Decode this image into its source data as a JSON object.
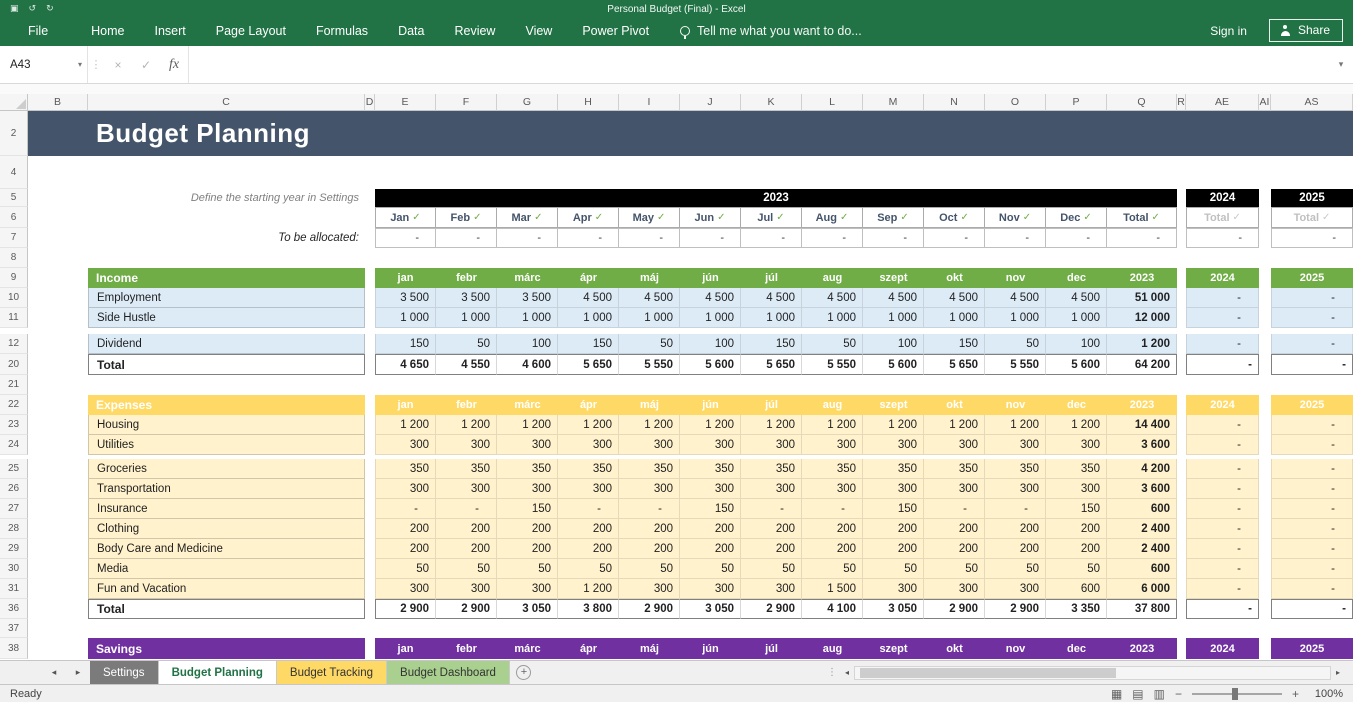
{
  "window": {
    "title": "Personal Budget (Final) - Excel"
  },
  "ribbon": {
    "tabs": [
      {
        "label": "File"
      },
      {
        "label": "Home"
      },
      {
        "label": "Insert"
      },
      {
        "label": "Page Layout"
      },
      {
        "label": "Formulas"
      },
      {
        "label": "Data"
      },
      {
        "label": "Review"
      },
      {
        "label": "View"
      },
      {
        "label": "Power Pivot"
      }
    ],
    "tell_me": "Tell me what you want to do...",
    "sign_in": "Sign in",
    "share_label": "Share"
  },
  "formula_bar": {
    "name_box": "A43",
    "fx_label": "fx",
    "formula_value": ""
  },
  "grid": {
    "column_headers": [
      "B",
      "C",
      "D",
      "E",
      "F",
      "G",
      "H",
      "I",
      "J",
      "K",
      "L",
      "M",
      "N",
      "O",
      "P",
      "Q",
      "R",
      "AE",
      "AI",
      "AS"
    ],
    "row_numbers": [
      "2",
      "4",
      "5",
      "6",
      "7",
      "8",
      "9",
      "10",
      "11",
      "12",
      "20",
      "21",
      "22",
      "23",
      "24",
      "25",
      "26",
      "27",
      "28",
      "29",
      "30",
      "31",
      "36",
      "37",
      "38"
    ]
  },
  "sheet": {
    "banner_title": "Budget Planning",
    "settings_note": "Define the starting year in Settings",
    "allocated_label": "To be allocated:",
    "year_main": "2023",
    "year_next": "2024",
    "year_after": "2025",
    "check_mark": "✓",
    "month_headers": [
      "Jan",
      "Feb",
      "Mar",
      "Apr",
      "May",
      "Jun",
      "Jul",
      "Aug",
      "Sep",
      "Oct",
      "Nov",
      "Dec"
    ],
    "total_header": "Total",
    "section_months": [
      "jan",
      "febr",
      "márc",
      "ápr",
      "máj",
      "jún",
      "júl",
      "aug",
      "szept",
      "okt",
      "nov",
      "dec"
    ],
    "allocated_values": [
      "-",
      "-",
      "-",
      "-",
      "-",
      "-",
      "-",
      "-",
      "-",
      "-",
      "-",
      "-",
      "-"
    ],
    "allocated_2024": "-",
    "allocated_2025": "-"
  },
  "income": {
    "title": "Income",
    "rows": [
      {
        "label": "Employment",
        "values": [
          "3 500",
          "3 500",
          "3 500",
          "4 500",
          "4 500",
          "4 500",
          "4 500",
          "4 500",
          "4 500",
          "4 500",
          "4 500",
          "4 500"
        ],
        "total": "51 000",
        "y2024": "-",
        "y2025": "-"
      },
      {
        "label": "Side Hustle",
        "values": [
          "1 000",
          "1 000",
          "1 000",
          "1 000",
          "1 000",
          "1 000",
          "1 000",
          "1 000",
          "1 000",
          "1 000",
          "1 000",
          "1 000"
        ],
        "total": "12 000",
        "y2024": "-",
        "y2025": "-"
      },
      {
        "label": "Dividend",
        "values": [
          "150",
          "50",
          "100",
          "150",
          "50",
          "100",
          "150",
          "50",
          "100",
          "150",
          "50",
          "100"
        ],
        "total": "1 200",
        "y2024": "-",
        "y2025": "-"
      }
    ],
    "total_row": {
      "label": "Total",
      "values": [
        "4 650",
        "4 550",
        "4 600",
        "5 650",
        "5 550",
        "5 600",
        "5 650",
        "5 550",
        "5 600",
        "5 650",
        "5 550",
        "5 600"
      ],
      "total": "64 200",
      "y2024": "-",
      "y2025": "-"
    }
  },
  "expenses": {
    "title": "Expenses",
    "rows": [
      {
        "label": "Housing",
        "values": [
          "1 200",
          "1 200",
          "1 200",
          "1 200",
          "1 200",
          "1 200",
          "1 200",
          "1 200",
          "1 200",
          "1 200",
          "1 200",
          "1 200"
        ],
        "total": "14 400",
        "y2024": "-",
        "y2025": "-"
      },
      {
        "label": "Utilities",
        "values": [
          "300",
          "300",
          "300",
          "300",
          "300",
          "300",
          "300",
          "300",
          "300",
          "300",
          "300",
          "300"
        ],
        "total": "3 600",
        "y2024": "-",
        "y2025": "-"
      },
      {
        "label": "Groceries",
        "values": [
          "350",
          "350",
          "350",
          "350",
          "350",
          "350",
          "350",
          "350",
          "350",
          "350",
          "350",
          "350"
        ],
        "total": "4 200",
        "y2024": "-",
        "y2025": "-"
      },
      {
        "label": "Transportation",
        "values": [
          "300",
          "300",
          "300",
          "300",
          "300",
          "300",
          "300",
          "300",
          "300",
          "300",
          "300",
          "300"
        ],
        "total": "3 600",
        "y2024": "-",
        "y2025": "-"
      },
      {
        "label": "Insurance",
        "values": [
          "-",
          "-",
          "150",
          "-",
          "-",
          "150",
          "-",
          "-",
          "150",
          "-",
          "-",
          "150"
        ],
        "total": "600",
        "y2024": "-",
        "y2025": "-"
      },
      {
        "label": "Clothing",
        "values": [
          "200",
          "200",
          "200",
          "200",
          "200",
          "200",
          "200",
          "200",
          "200",
          "200",
          "200",
          "200"
        ],
        "total": "2 400",
        "y2024": "-",
        "y2025": "-"
      },
      {
        "label": "Body Care and Medicine",
        "values": [
          "200",
          "200",
          "200",
          "200",
          "200",
          "200",
          "200",
          "200",
          "200",
          "200",
          "200",
          "200"
        ],
        "total": "2 400",
        "y2024": "-",
        "y2025": "-"
      },
      {
        "label": "Media",
        "values": [
          "50",
          "50",
          "50",
          "50",
          "50",
          "50",
          "50",
          "50",
          "50",
          "50",
          "50",
          "50"
        ],
        "total": "600",
        "y2024": "-",
        "y2025": "-"
      },
      {
        "label": "Fun and Vacation",
        "values": [
          "300",
          "300",
          "300",
          "1 200",
          "300",
          "300",
          "300",
          "1 500",
          "300",
          "300",
          "300",
          "600"
        ],
        "total": "6 000",
        "y2024": "-",
        "y2025": "-"
      }
    ],
    "total_row": {
      "label": "Total",
      "values": [
        "2 900",
        "2 900",
        "3 050",
        "3 800",
        "2 900",
        "3 050",
        "2 900",
        "4 100",
        "3 050",
        "2 900",
        "2 900",
        "3 350"
      ],
      "total": "37 800",
      "y2024": "-",
      "y2025": "-"
    }
  },
  "savings": {
    "title": "Savings"
  },
  "sheet_tabs": [
    {
      "label": "Settings",
      "color": "#7B7B7B",
      "text_color": "#FFFFFF",
      "active": false
    },
    {
      "label": "Budget Planning",
      "color": "#FFFFFF",
      "text_color": "#217346",
      "active": true
    },
    {
      "label": "Budget Tracking",
      "color": "#FFD966",
      "text_color": "#333333",
      "active": false
    },
    {
      "label": "Budget Dashboard",
      "color": "#A9D08E",
      "text_color": "#333333",
      "active": false
    }
  ],
  "status_bar": {
    "mode": "Ready",
    "zoom": "100%"
  },
  "colors": {
    "ribbon_green": "#217346",
    "banner": "#44546A",
    "year_bar": "#000000",
    "check_green": "#70AD47",
    "income_header": "#70AD47",
    "income_fill": "#DDEBF7",
    "expenses_header": "#FFD966",
    "expenses_fill": "#FFF2CC",
    "savings_header": "#7030A0"
  }
}
